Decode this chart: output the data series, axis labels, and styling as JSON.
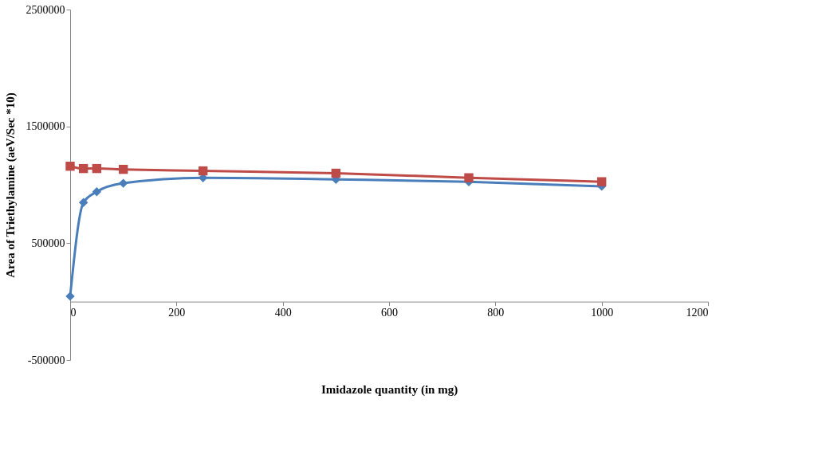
{
  "chart_data": {
    "type": "line",
    "xlabel": "Imidazole quantity (in mg)",
    "ylabel": "Area  of Triethylamine (aeV/Sec *10)",
    "xlim": [
      0,
      1200
    ],
    "xticks": [
      0,
      200,
      400,
      600,
      800,
      1000,
      1200
    ],
    "ylim": [
      -500000,
      2500000
    ],
    "yticks": [
      -500000,
      500000,
      1500000,
      2500000
    ],
    "line_style": "solid",
    "series": [
      {
        "color": "#4a7ebb",
        "marker": "diamond",
        "x": [
          0,
          25,
          50,
          100,
          250,
          500,
          750,
          1000
        ],
        "values": [
          46000,
          848000,
          940000,
          1013000,
          1060000,
          1046000,
          1026000,
          987000
        ]
      },
      {
        "color": "#be4b48",
        "marker": "square",
        "x": [
          0,
          25,
          50,
          100,
          250,
          500,
          750,
          1000
        ],
        "values": [
          1159000,
          1139000,
          1139000,
          1132000,
          1119000,
          1099000,
          1060000,
          1026000
        ]
      }
    ]
  }
}
